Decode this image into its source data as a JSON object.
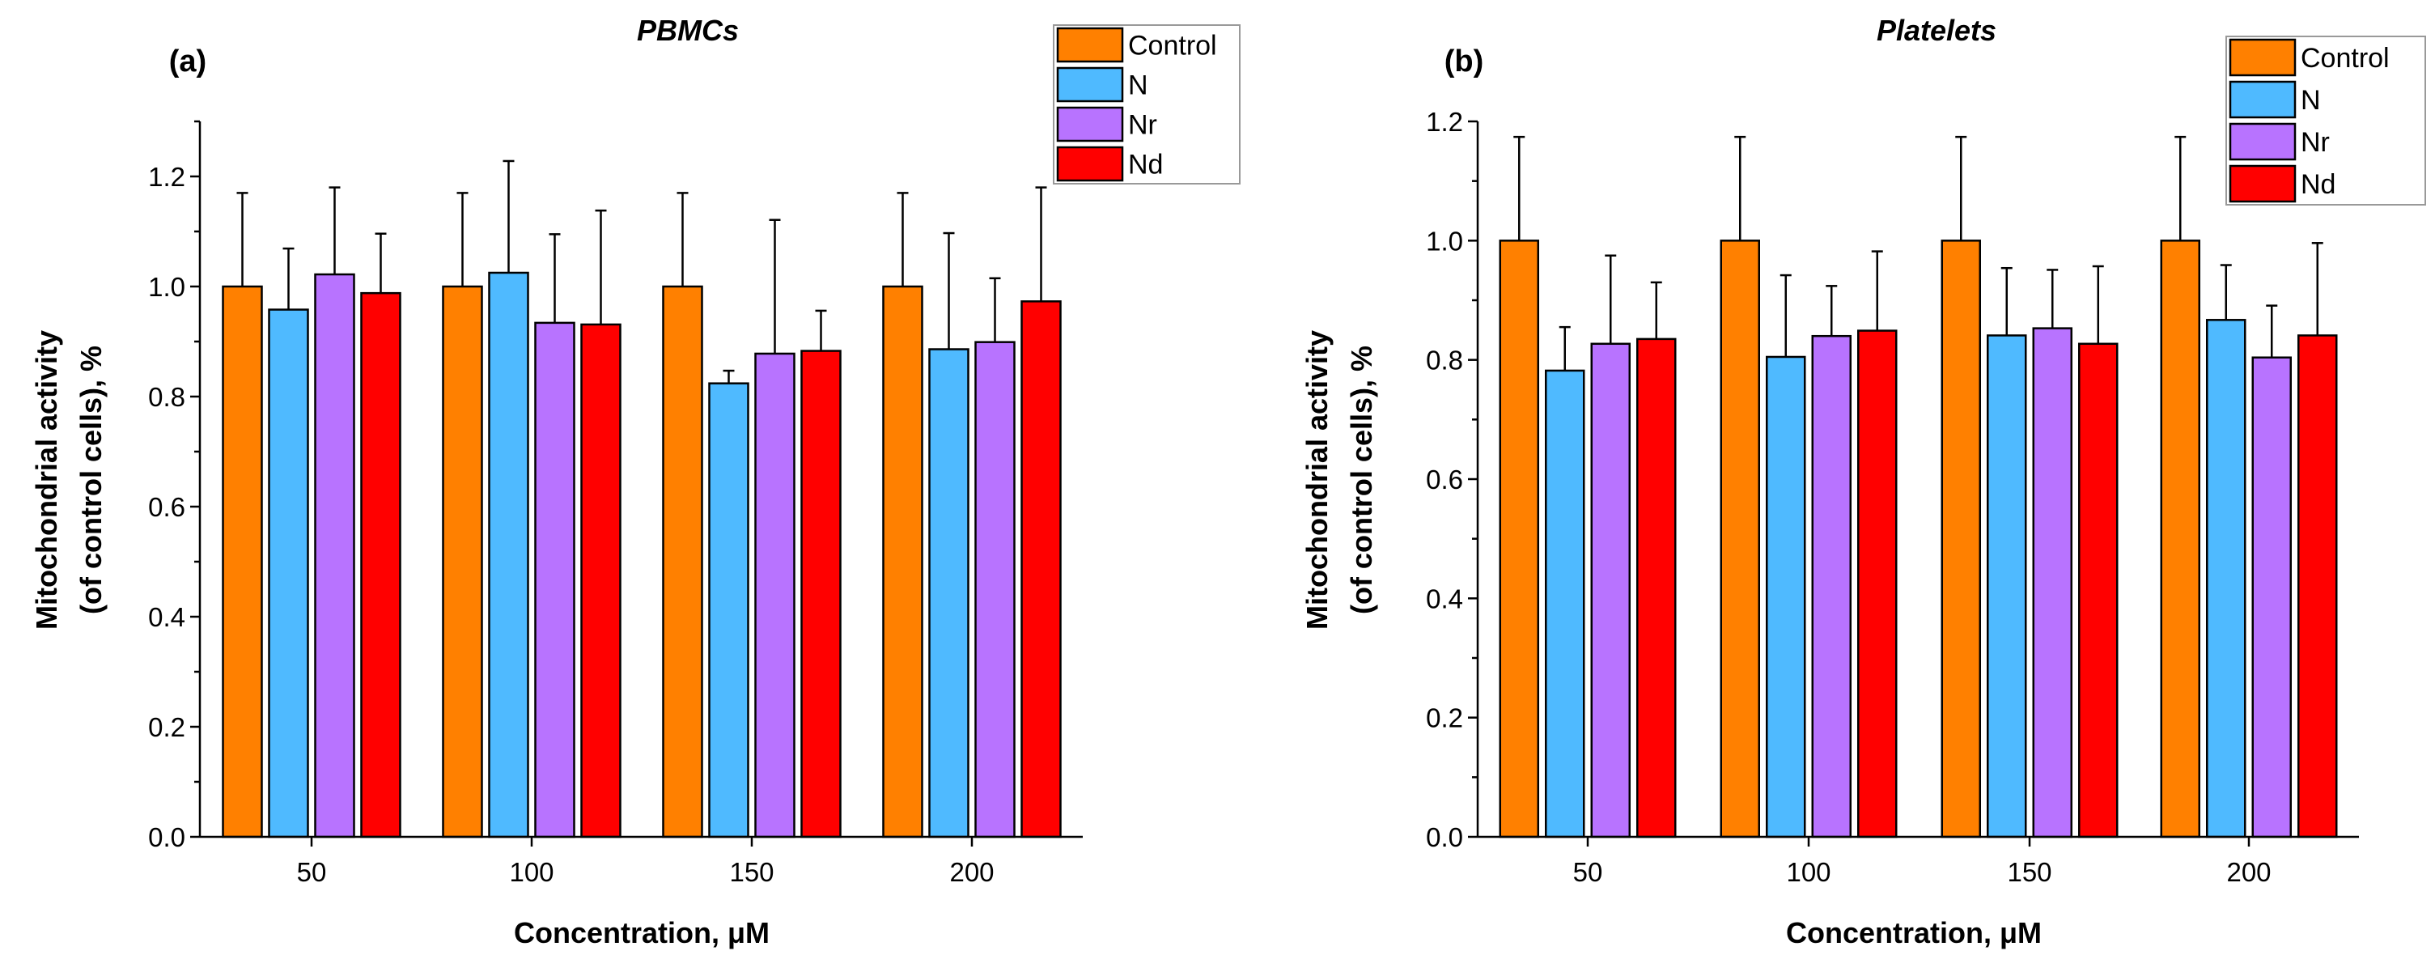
{
  "chart_data": [
    {
      "type": "bar",
      "panel_label": "(a)",
      "title": "PBMCs",
      "xlabel": "Concentration, μM",
      "ylabel_line1": "Mitochondrial activity",
      "ylabel_line2": "(of control cells), %",
      "categories": [
        "50",
        "100",
        "150",
        "200"
      ],
      "ylim": [
        0,
        1.3
      ],
      "yticks": [
        "0.0",
        "0.2",
        "0.4",
        "0.6",
        "0.8",
        "1.0",
        "1.2"
      ],
      "legend_position": "top-right",
      "series": [
        {
          "name": "Control",
          "color": "#FF8000",
          "values": [
            1.0,
            1.0,
            1.0,
            1.0
          ],
          "error_upper": [
            1.17,
            1.17,
            1.17,
            1.17
          ]
        },
        {
          "name": "N",
          "color": "#4FBAFF",
          "values": [
            0.958,
            1.025,
            0.824,
            0.886
          ],
          "error_upper": [
            1.069,
            1.228,
            0.847,
            1.097
          ]
        },
        {
          "name": "Nr",
          "color": "#B873FF",
          "values": [
            1.022,
            0.934,
            0.878,
            0.899
          ],
          "error_upper": [
            1.18,
            1.095,
            1.121,
            1.015
          ]
        },
        {
          "name": "Nd",
          "color": "#FF0000",
          "values": [
            0.988,
            0.931,
            0.883,
            0.973
          ],
          "error_upper": [
            1.096,
            1.138,
            0.956,
            1.18
          ]
        }
      ]
    },
    {
      "type": "bar",
      "panel_label": "(b)",
      "title": "Platelets",
      "xlabel": "Concentration, μM",
      "ylabel_line1": "Mitochondrial activity",
      "ylabel_line2": "(of control cells), %",
      "categories": [
        "50",
        "100",
        "150",
        "200"
      ],
      "ylim": [
        0,
        1.2
      ],
      "yticks": [
        "0.0",
        "0.2",
        "0.4",
        "0.6",
        "0.8",
        "1.0",
        "1.2"
      ],
      "legend_position": "top-right",
      "series": [
        {
          "name": "Control",
          "color": "#FF8000",
          "values": [
            1.0,
            1.0,
            1.0,
            1.0
          ],
          "error_upper": [
            1.174,
            1.174,
            1.174,
            1.174
          ]
        },
        {
          "name": "N",
          "color": "#4FBAFF",
          "values": [
            0.782,
            0.805,
            0.841,
            0.867
          ],
          "error_upper": [
            0.855,
            0.942,
            0.954,
            0.959
          ]
        },
        {
          "name": "Nr",
          "color": "#B873FF",
          "values": [
            0.827,
            0.84,
            0.853,
            0.804
          ],
          "error_upper": [
            0.975,
            0.924,
            0.951,
            0.891
          ]
        },
        {
          "name": "Nd",
          "color": "#FF0000",
          "values": [
            0.835,
            0.849,
            0.827,
            0.841
          ],
          "error_upper": [
            0.93,
            0.982,
            0.957,
            0.996
          ]
        }
      ]
    }
  ]
}
